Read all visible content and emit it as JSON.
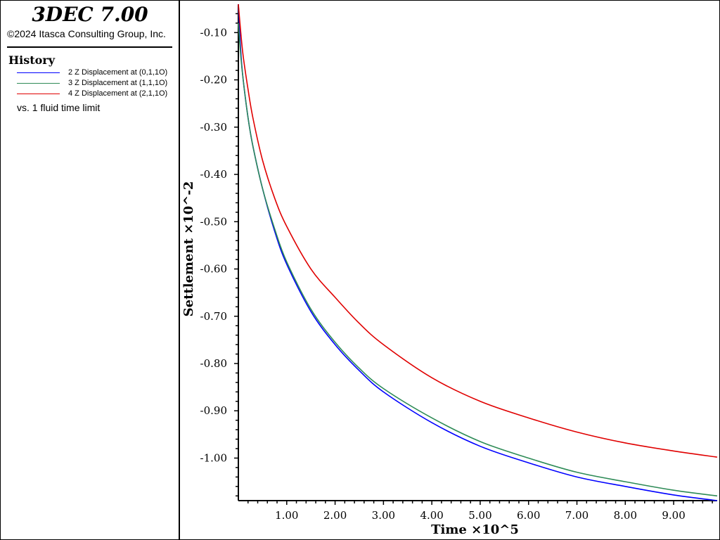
{
  "header": {
    "app_title": "3DEC 7.00",
    "copyright": "©2024 Itasca Consulting Group, Inc.",
    "history_heading": "History",
    "vs_label": "vs. 1 fluid time limit"
  },
  "colors": {
    "series_blue": "#0000ff",
    "series_green": "#2e8b57",
    "series_red": "#e00000"
  },
  "chart_data": {
    "type": "line",
    "xlabel": "Time ×10^5",
    "ylabel": "Settlement ×10^-2",
    "xlim": [
      0.0,
      9.9
    ],
    "ylim": [
      -1.09,
      -0.04
    ],
    "x_ticks": [
      "1.00",
      "2.00",
      "3.00",
      "4.00",
      "5.00",
      "6.00",
      "7.00",
      "8.00",
      "9.00"
    ],
    "y_ticks": [
      "-0.10",
      "-0.20",
      "-0.30",
      "-0.40",
      "-0.50",
      "-0.60",
      "-0.70",
      "-0.80",
      "-0.90",
      "-1.00"
    ],
    "x_tick_values": [
      1,
      2,
      3,
      4,
      5,
      6,
      7,
      8,
      9
    ],
    "y_tick_values": [
      -0.1,
      -0.2,
      -0.3,
      -0.4,
      -0.5,
      -0.6,
      -0.7,
      -0.8,
      -0.9,
      -1.0
    ],
    "grid": false,
    "legend": "left panel",
    "series": [
      {
        "name": "2 Z Displacement at (0,1,1O)",
        "color": "#0000ff",
        "x": [
          0.0,
          0.05,
          0.1,
          0.2,
          0.3,
          0.5,
          0.75,
          1.0,
          1.5,
          2.0,
          2.5,
          3.0,
          4.0,
          5.0,
          6.0,
          7.0,
          8.0,
          9.0,
          9.9
        ],
        "values": [
          -0.04,
          -0.14,
          -0.2,
          -0.28,
          -0.34,
          -0.43,
          -0.52,
          -0.59,
          -0.69,
          -0.76,
          -0.815,
          -0.86,
          -0.925,
          -0.975,
          -1.01,
          -1.04,
          -1.06,
          -1.078,
          -1.09
        ]
      },
      {
        "name": "3 Z Displacement at (1,1,1O)",
        "color": "#2e8b57",
        "x": [
          0.0,
          0.05,
          0.1,
          0.2,
          0.3,
          0.5,
          0.75,
          1.0,
          1.5,
          2.0,
          2.5,
          3.0,
          4.0,
          5.0,
          6.0,
          7.0,
          8.0,
          9.0,
          9.9
        ],
        "values": [
          -0.08,
          -0.15,
          -0.2,
          -0.28,
          -0.34,
          -0.43,
          -0.515,
          -0.585,
          -0.685,
          -0.755,
          -0.81,
          -0.853,
          -0.915,
          -0.965,
          -1.0,
          -1.03,
          -1.05,
          -1.068,
          -1.08
        ]
      },
      {
        "name": "4 Z Displacement at (2,1,1O)",
        "color": "#e00000",
        "x": [
          0.0,
          0.05,
          0.1,
          0.2,
          0.3,
          0.5,
          0.75,
          1.0,
          1.5,
          2.0,
          2.5,
          3.0,
          4.0,
          5.0,
          6.0,
          7.0,
          8.0,
          9.0,
          9.9
        ],
        "values": [
          -0.04,
          -0.1,
          -0.15,
          -0.22,
          -0.28,
          -0.37,
          -0.45,
          -0.51,
          -0.6,
          -0.66,
          -0.715,
          -0.76,
          -0.83,
          -0.88,
          -0.915,
          -0.945,
          -0.968,
          -0.985,
          -0.998
        ]
      }
    ]
  }
}
